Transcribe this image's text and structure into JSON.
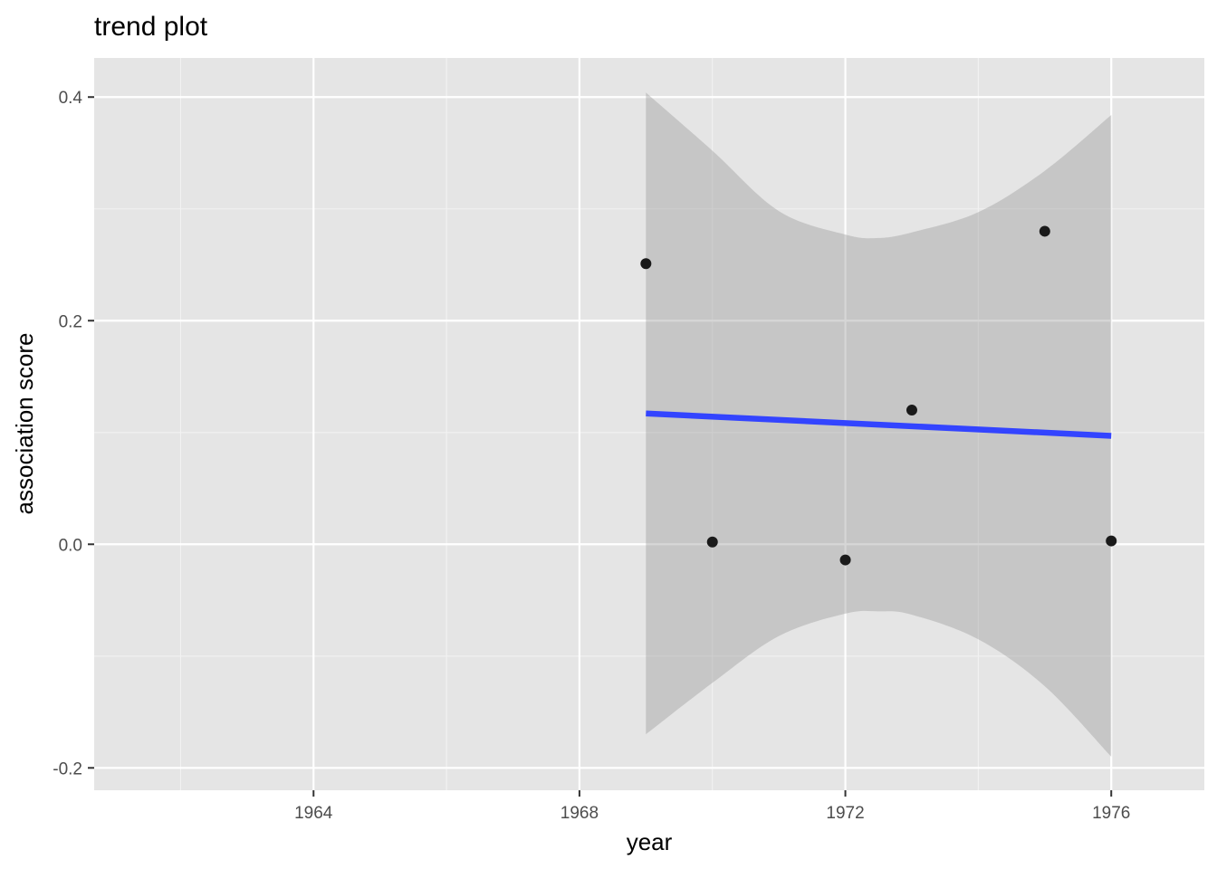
{
  "chart_data": {
    "type": "scatter",
    "title": "trend plot",
    "xlabel": "year",
    "ylabel": "association score",
    "xlim": [
      1960.7,
      1977.4
    ],
    "ylim": [
      -0.22,
      0.435
    ],
    "x_ticks": [
      1964,
      1968,
      1972,
      1976
    ],
    "x_tick_labels": [
      "1964",
      "1968",
      "1972",
      "1976"
    ],
    "x_minor_ticks": [
      1962,
      1966,
      1970,
      1974
    ],
    "y_ticks": [
      -0.2,
      0.0,
      0.2,
      0.4
    ],
    "y_tick_labels": [
      "-0.2",
      "0.0",
      "0.2",
      "0.4"
    ],
    "y_minor_ticks": [
      -0.1,
      0.1,
      0.3
    ],
    "grid": true,
    "points": {
      "x": [
        1969,
        1970,
        1972,
        1973,
        1975,
        1976
      ],
      "y": [
        0.251,
        0.002,
        -0.014,
        0.12,
        0.28,
        0.003
      ],
      "color": "#1a1a1a"
    },
    "trend_line": {
      "method": "linear",
      "x": [
        1969,
        1976
      ],
      "y": [
        0.117,
        0.097
      ],
      "color": "#3344ff"
    },
    "confidence_band": {
      "x": [
        1969,
        1970,
        1971,
        1972,
        1972.5,
        1973,
        1974,
        1975,
        1976
      ],
      "upper": [
        0.404,
        0.352,
        0.298,
        0.277,
        0.274,
        0.279,
        0.297,
        0.334,
        0.384
      ],
      "lower": [
        -0.17,
        -0.124,
        -0.082,
        -0.062,
        -0.06,
        -0.063,
        -0.085,
        -0.127,
        -0.19
      ],
      "color": "#999999"
    },
    "colors": {
      "panel_background": "#e5e5e5",
      "grid_major": "#ffffff",
      "grid_minor": "#f2f2f2"
    }
  }
}
